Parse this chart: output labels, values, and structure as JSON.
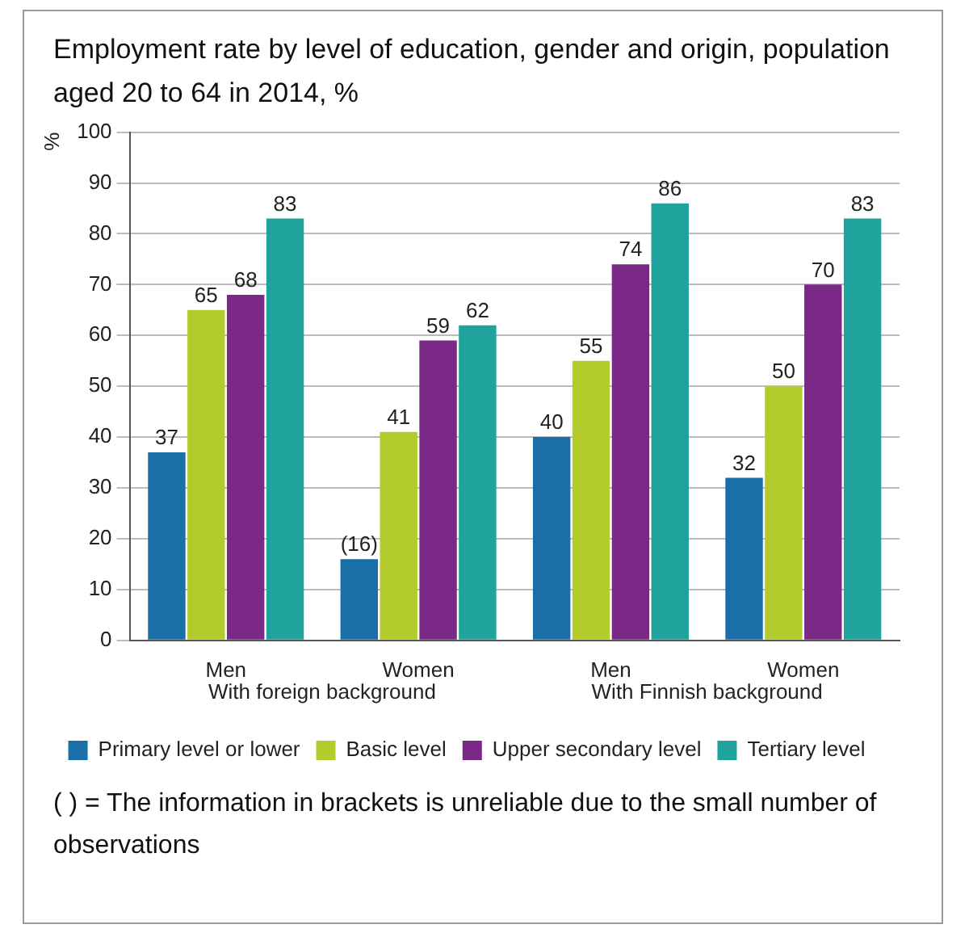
{
  "chart_data": {
    "type": "bar",
    "title": "Employment rate by level of education, gender and origin, population aged 20 to 64 in 2014, %",
    "ylabel": "%",
    "categories": [
      "Men",
      "Women",
      "Men",
      "Women"
    ],
    "series": [
      {
        "name": "Primary level or lower",
        "color": "#1a6fa8",
        "values": [
          37,
          16,
          40,
          32
        ],
        "value_labels": [
          "37",
          "(16)",
          "40",
          "32"
        ]
      },
      {
        "name": "Basic level",
        "color": "#b3cc2b",
        "values": [
          65,
          41,
          55,
          50
        ],
        "value_labels": [
          "65",
          "41",
          "55",
          "50"
        ]
      },
      {
        "name": "Upper secondary level",
        "color": "#7a2a86",
        "values": [
          68,
          59,
          74,
          70
        ],
        "value_labels": [
          "68",
          "59",
          "74",
          "70"
        ]
      },
      {
        "name": "Tertiary level",
        "color": "#1fa39c",
        "values": [
          83,
          62,
          86,
          83
        ],
        "value_labels": [
          "83",
          "62",
          "86",
          "83"
        ]
      }
    ],
    "ylim": [
      0,
      100
    ],
    "yticks": [
      0,
      10,
      20,
      30,
      40,
      50,
      60,
      70,
      80,
      90,
      100
    ],
    "grid": "y",
    "legend": "bottom",
    "annotations": [
      "With foreign background",
      "With Finnish background",
      "( ) = The information in brackets is unreliable due to the small number of observations"
    ]
  }
}
